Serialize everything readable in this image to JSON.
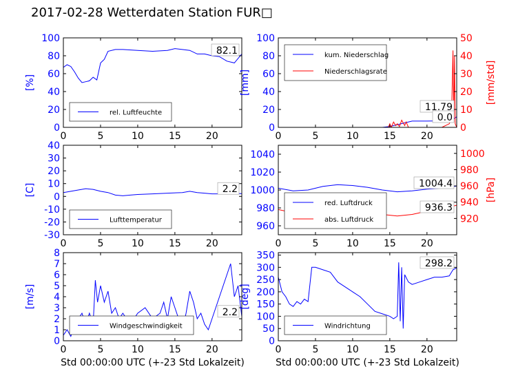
{
  "title": "2017-02-28 Wetterdaten Station FUR□",
  "colors": {
    "primary": "#0000ff",
    "secondary": "#ff0000",
    "axis": "#000000",
    "text": "#000000"
  },
  "chart_data": [
    {
      "id": "humidity",
      "type": "line",
      "xlabel": "",
      "ylabel": "[%]",
      "xlim": [
        0,
        24
      ],
      "ylim": [
        0,
        100
      ],
      "xticks": [
        0,
        5,
        10,
        15,
        20
      ],
      "yticks": [
        0,
        20,
        40,
        60,
        80,
        100
      ],
      "legend": {
        "position": "bottom-left",
        "entries": [
          "rel. Luftfeuchte"
        ]
      },
      "annotations": [
        "82.1"
      ],
      "series": [
        {
          "name": "rel. Luftfeuchte",
          "axis": "left",
          "color": "#0000ff",
          "x": [
            0,
            0.5,
            1,
            1.5,
            2,
            2.5,
            3,
            3.5,
            4,
            4.5,
            5,
            5.5,
            6,
            7,
            8,
            10,
            12,
            14,
            15,
            16,
            17,
            18,
            19,
            20,
            21,
            22,
            23,
            24
          ],
          "y": [
            67,
            70,
            68,
            62,
            55,
            50,
            51,
            52,
            56,
            53,
            72,
            76,
            85,
            87,
            87,
            86,
            85,
            86,
            88,
            87,
            86,
            82,
            82,
            80,
            79,
            74,
            72,
            82
          ]
        }
      ]
    },
    {
      "id": "precipitation",
      "type": "line",
      "xlabel": "",
      "ylabel": "[mm]",
      "ylabel2": "[mm/std]",
      "xlim": [
        0,
        24
      ],
      "ylim": [
        0,
        100
      ],
      "y2lim": [
        0,
        50
      ],
      "xticks": [
        0,
        5,
        10,
        15,
        20
      ],
      "yticks": [
        0,
        20,
        40,
        60,
        80,
        100
      ],
      "y2ticks": [
        0,
        10,
        20,
        30,
        40,
        50
      ],
      "legend": {
        "position": "top-left",
        "entries": [
          "kum. Niederschlag",
          "Niederschlagsrate"
        ]
      },
      "annotations": [
        "11.79",
        "0.0"
      ],
      "series": [
        {
          "name": "kum. Niederschlag",
          "axis": "left",
          "color": "#0000ff",
          "x": [
            0,
            14,
            15,
            16,
            17,
            18,
            20,
            23,
            23.5,
            24
          ],
          "y": [
            0,
            0,
            1,
            3,
            5,
            7,
            7,
            7.5,
            9,
            11.79
          ]
        },
        {
          "name": "Niederschlagsrate",
          "axis": "right",
          "color": "#ff0000",
          "x": [
            0,
            14.8,
            15,
            15.2,
            15.5,
            15.8,
            16,
            16.3,
            16.6,
            17,
            17.2,
            17.5,
            18,
            22,
            23,
            23.3,
            23.5,
            23.6,
            23.7,
            23.8,
            24
          ],
          "y": [
            0,
            0,
            2,
            0,
            3,
            1,
            2,
            0.5,
            4,
            1,
            3,
            0,
            0,
            0,
            2,
            5,
            43,
            3,
            40,
            2,
            0
          ]
        }
      ]
    },
    {
      "id": "temperature",
      "type": "line",
      "xlabel": "",
      "ylabel": "[C]",
      "xlim": [
        0,
        24
      ],
      "ylim": [
        -30,
        40
      ],
      "xticks": [
        0,
        5,
        10,
        15,
        20
      ],
      "yticks": [
        -30,
        -20,
        -10,
        0,
        10,
        20,
        30,
        40
      ],
      "legend": {
        "position": "bottom-left",
        "entries": [
          "Lufttemperatur"
        ]
      },
      "annotations": [
        "2.2"
      ],
      "series": [
        {
          "name": "Lufttemperatur",
          "axis": "left",
          "color": "#0000ff",
          "x": [
            0,
            1,
            2,
            3,
            4,
            5,
            6,
            7,
            8,
            9,
            10,
            12,
            14,
            16,
            17,
            18,
            19,
            20,
            21,
            22,
            23,
            24
          ],
          "y": [
            3,
            4,
            5,
            6,
            5.5,
            4,
            3,
            1,
            0.5,
            1,
            1.5,
            2,
            2.5,
            3,
            4,
            3,
            2.5,
            2,
            2,
            2.3,
            2.2,
            2.2
          ]
        }
      ]
    },
    {
      "id": "pressure",
      "type": "line",
      "xlabel": "",
      "ylabel": "",
      "ylabel2": "[hPa]",
      "xlim": [
        0,
        24
      ],
      "ylim": [
        950,
        1050
      ],
      "y2lim": [
        900,
        1010
      ],
      "xticks": [
        0,
        5,
        10,
        15,
        20
      ],
      "yticks": [
        960,
        980,
        1000,
        1020,
        1040
      ],
      "y2ticks": [
        920,
        940,
        960,
        980,
        1000
      ],
      "legend": {
        "position": "bottom-left",
        "entries": [
          "red. Luftdruck",
          "abs. Luftdruck"
        ]
      },
      "annotations": [
        "1004.4",
        "936.3"
      ],
      "series": [
        {
          "name": "red. Luftdruck",
          "axis": "left",
          "color": "#0000ff",
          "x": [
            0,
            2,
            4,
            6,
            8,
            10,
            12,
            14,
            16,
            18,
            20,
            22,
            24
          ],
          "y": [
            1002,
            999,
            1000,
            1004,
            1006,
            1005,
            1003,
            1000,
            998,
            999,
            1001,
            1002,
            1004.4
          ]
        },
        {
          "name": "abs. Luftdruck",
          "axis": "right",
          "color": "#ff0000",
          "x": [
            0,
            2,
            4,
            6,
            8,
            10,
            12,
            14,
            16,
            18,
            20,
            22,
            24
          ],
          "y": [
            931,
            927,
            925,
            926,
            928,
            929,
            928,
            925,
            923,
            925,
            929,
            932,
            936.3
          ]
        }
      ]
    },
    {
      "id": "windspeed",
      "type": "line",
      "xlabel": "Std 00:00:00 UTC (+-23 Std Lokalzeit)",
      "ylabel": "[m/s]",
      "xlim": [
        0,
        24
      ],
      "ylim": [
        0,
        8
      ],
      "xticks": [
        0,
        5,
        10,
        15,
        20
      ],
      "yticks": [
        0,
        1,
        2,
        3,
        4,
        5,
        6,
        7,
        8
      ],
      "legend": {
        "position": "bottom-left",
        "entries": [
          "Windgeschwindigkeit"
        ]
      },
      "annotations": [
        "2.2"
      ],
      "series": [
        {
          "name": "Windgeschwindigkeit",
          "axis": "left",
          "color": "#0000ff",
          "x": [
            0,
            0.5,
            1,
            1.5,
            2,
            2.5,
            3,
            3.5,
            4,
            4.3,
            4.6,
            5,
            5.5,
            6,
            6.5,
            7,
            7.5,
            8,
            9,
            10,
            11,
            12,
            13,
            13.5,
            14,
            14.5,
            15,
            15.5,
            16,
            16.5,
            17,
            17.5,
            18,
            18.5,
            19,
            19.5,
            20,
            20.5,
            21,
            21.5,
            22,
            22.5,
            23,
            23.5,
            24
          ],
          "y": [
            0.5,
            1,
            0.4,
            1.5,
            2,
            2.5,
            1.5,
            2.5,
            1.5,
            5.5,
            3.5,
            5,
            3.5,
            4.5,
            2.5,
            3,
            2,
            2.5,
            1.5,
            2.5,
            3,
            2,
            2.5,
            3.5,
            2,
            4,
            3,
            2,
            1,
            2.5,
            4.5,
            3.5,
            2,
            2.5,
            1.5,
            1,
            2,
            3,
            4,
            5,
            6,
            7,
            4,
            5,
            2.2
          ]
        }
      ]
    },
    {
      "id": "winddirection",
      "type": "line",
      "xlabel": "Std 00:00:00 UTC (+-23 Std Lokalzeit)",
      "ylabel": "[deg]",
      "xlim": [
        0,
        24
      ],
      "ylim": [
        0,
        360
      ],
      "xticks": [
        0,
        5,
        10,
        15,
        20
      ],
      "yticks": [
        0,
        50,
        100,
        150,
        200,
        250,
        300,
        350
      ],
      "legend": {
        "position": "bottom-left",
        "entries": [
          "Windrichtung"
        ]
      },
      "annotations": [
        "298.2"
      ],
      "series": [
        {
          "name": "Windrichtung",
          "axis": "left",
          "color": "#0000ff",
          "x": [
            0,
            0.5,
            1,
            1.5,
            2,
            2.5,
            3,
            3.5,
            4,
            4.5,
            5,
            6,
            7,
            8,
            9,
            10,
            11,
            12,
            13,
            14,
            15,
            15.5,
            16,
            16.2,
            16.4,
            16.6,
            16.8,
            17,
            17.5,
            18,
            19,
            20,
            21,
            22,
            23,
            23.5,
            24
          ],
          "y": [
            260,
            200,
            180,
            150,
            140,
            160,
            150,
            170,
            160,
            300,
            300,
            290,
            280,
            240,
            220,
            200,
            180,
            150,
            120,
            110,
            100,
            90,
            100,
            320,
            80,
            300,
            50,
            270,
            240,
            230,
            240,
            250,
            260,
            260,
            265,
            290,
            298.2
          ]
        }
      ]
    }
  ]
}
